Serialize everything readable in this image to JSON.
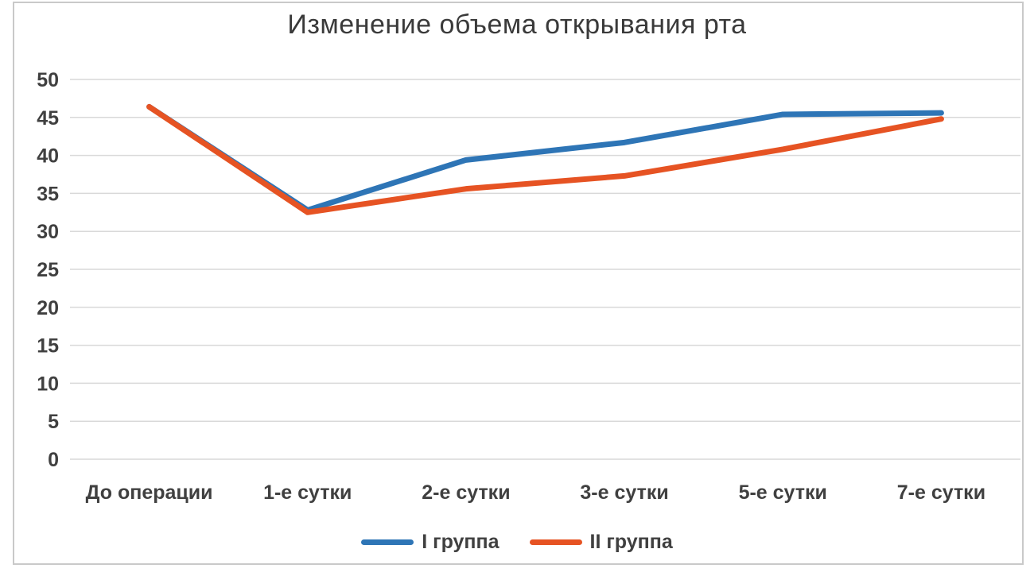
{
  "chart_data": {
    "type": "line",
    "title": "Изменение объема открывания рта",
    "categories": [
      "До операции",
      "1-е сутки",
      "2-е сутки",
      "3-е сутки",
      "5-е сутки",
      "7-е сутки"
    ],
    "series": [
      {
        "name": "I группа",
        "color": "#2E75B6",
        "values": [
          46.4,
          32.8,
          39.4,
          41.7,
          45.4,
          45.6
        ]
      },
      {
        "name": "II группа",
        "color": "#E65323",
        "values": [
          46.4,
          32.5,
          35.6,
          37.3,
          40.8,
          44.8
        ]
      }
    ],
    "xlabel": "",
    "ylabel": "",
    "ylim": [
      0,
      50
    ],
    "ytick_step": 5,
    "yticks": [
      0,
      5,
      10,
      15,
      20,
      25,
      30,
      35,
      40,
      45,
      50
    ],
    "grid": true,
    "legend_position": "bottom"
  },
  "colors": {
    "gridline": "#D9D9D9",
    "axis_text": "#404040",
    "title_text": "#3A3A3A",
    "frame_border": "#C9C9C9",
    "background": "#FFFFFF"
  }
}
